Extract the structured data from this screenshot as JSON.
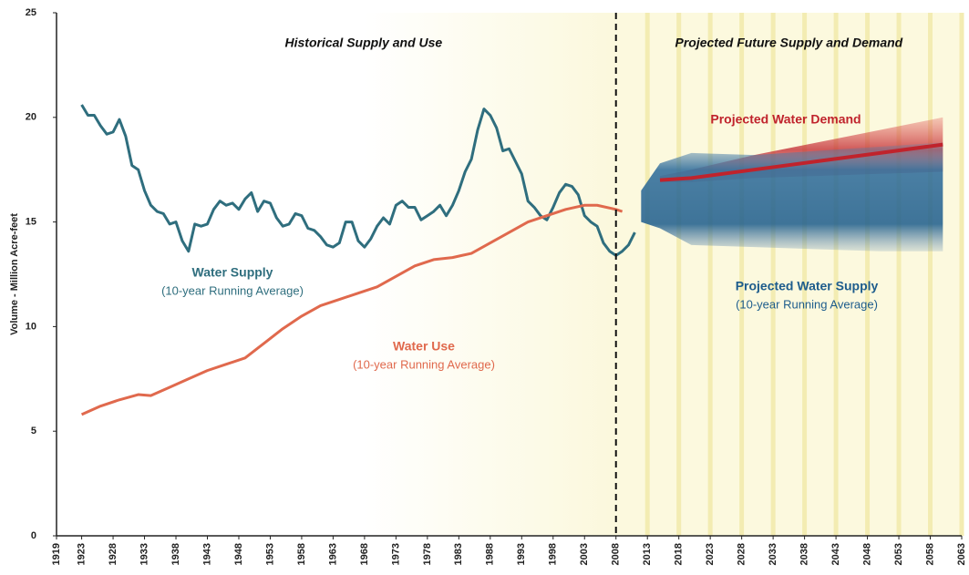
{
  "chart_data": {
    "type": "line",
    "ylabel": "Volume - Million Acre-feet",
    "xlim": [
      1919,
      2063
    ],
    "xticks": [
      1919,
      1923,
      1928,
      1933,
      1938,
      1943,
      1948,
      1953,
      1958,
      1963,
      1968,
      1973,
      1978,
      1983,
      1988,
      1993,
      1998,
      2003,
      2008,
      2013,
      2018,
      2023,
      2028,
      2033,
      2038,
      2043,
      2048,
      2053,
      2058,
      2063
    ],
    "ylim": [
      0,
      25
    ],
    "yticks": [
      0,
      5,
      10,
      15,
      20,
      25
    ],
    "divider": 2008,
    "sections": [
      {
        "label": "Historical Supply and Use"
      },
      {
        "label": "Projected Future Supply and Demand"
      }
    ],
    "series": [
      {
        "name": "Water Supply",
        "note": "(10-year Running Average)",
        "color": "#2f6e7e",
        "x": [
          1923,
          1924,
          1925,
          1926,
          1927,
          1928,
          1929,
          1930,
          1931,
          1932,
          1933,
          1934,
          1935,
          1936,
          1937,
          1938,
          1939,
          1940,
          1941,
          1942,
          1943,
          1944,
          1945,
          1946,
          1947,
          1948,
          1949,
          1950,
          1951,
          1952,
          1953,
          1954,
          1955,
          1956,
          1957,
          1958,
          1959,
          1960,
          1961,
          1962,
          1963,
          1964,
          1965,
          1966,
          1967,
          1968,
          1969,
          1970,
          1971,
          1972,
          1973,
          1974,
          1975,
          1976,
          1977,
          1978,
          1979,
          1980,
          1981,
          1982,
          1983,
          1984,
          1985,
          1986,
          1987,
          1988,
          1989,
          1990,
          1991,
          1992,
          1993,
          1994,
          1995,
          1996,
          1997,
          1998,
          1999,
          2000,
          2001,
          2002,
          2003,
          2004,
          2005,
          2006,
          2007,
          2008,
          2009,
          2010,
          2011
        ],
        "values": [
          20.6,
          20.1,
          20.1,
          19.6,
          19.2,
          19.3,
          19.9,
          19.1,
          17.7,
          17.5,
          16.5,
          15.8,
          15.5,
          15.4,
          14.9,
          15.0,
          14.1,
          13.6,
          14.9,
          14.8,
          14.9,
          15.6,
          16.0,
          15.8,
          15.9,
          15.6,
          16.1,
          16.4,
          15.5,
          16.0,
          15.9,
          15.2,
          14.8,
          14.9,
          15.4,
          15.3,
          14.7,
          14.6,
          14.3,
          13.9,
          13.8,
          14.0,
          15.0,
          15.0,
          14.1,
          13.8,
          14.2,
          14.8,
          15.2,
          14.9,
          15.8,
          16.0,
          15.7,
          15.7,
          15.1,
          15.3,
          15.5,
          15.8,
          15.3,
          15.8,
          16.5,
          17.4,
          18.0,
          19.4,
          20.4,
          20.1,
          19.5,
          18.4,
          18.5,
          17.9,
          17.3,
          16.0,
          15.7,
          15.3,
          15.1,
          15.7,
          16.4,
          16.8,
          16.7,
          16.3,
          15.3,
          15.0,
          14.8,
          14.0,
          13.6,
          13.4,
          13.6,
          13.9,
          14.5
        ]
      },
      {
        "name": "Water Use",
        "note": "(10-year Running Average)",
        "color": "#e0694d",
        "x": [
          1923,
          1926,
          1929,
          1932,
          1934,
          1937,
          1940,
          1943,
          1946,
          1949,
          1952,
          1955,
          1958,
          1961,
          1964,
          1967,
          1970,
          1973,
          1976,
          1979,
          1982,
          1985,
          1988,
          1991,
          1994,
          1997,
          2000,
          2003,
          2005,
          2008,
          2009
        ],
        "values": [
          5.8,
          6.2,
          6.5,
          6.75,
          6.7,
          7.1,
          7.5,
          7.9,
          8.2,
          8.5,
          9.2,
          9.9,
          10.5,
          11.0,
          11.3,
          11.6,
          11.9,
          12.4,
          12.9,
          13.2,
          13.3,
          13.5,
          14.0,
          14.5,
          15.0,
          15.3,
          15.6,
          15.8,
          15.8,
          15.6,
          15.5
        ]
      },
      {
        "name": "Projected Water Demand",
        "color": "#c0232c",
        "x": [
          2015,
          2020,
          2030,
          2040,
          2050,
          2060
        ],
        "values": [
          17.0,
          17.1,
          17.5,
          17.9,
          18.3,
          18.7
        ],
        "low": [
          16.9,
          16.9,
          17.1,
          17.2,
          17.3,
          17.4
        ],
        "high": [
          17.2,
          17.5,
          18.2,
          18.8,
          19.4,
          20.0
        ]
      },
      {
        "name": "Projected Water Supply",
        "note": "(10-year Running Average)",
        "color": "#1d5c8c",
        "x": [
          2012,
          2015,
          2020,
          2030,
          2040,
          2050,
          2060
        ],
        "low": [
          15.0,
          14.7,
          13.9,
          13.8,
          13.7,
          13.6,
          13.6
        ],
        "high": [
          16.5,
          17.8,
          18.3,
          18.2,
          18.4,
          18.6,
          18.8
        ]
      }
    ]
  }
}
